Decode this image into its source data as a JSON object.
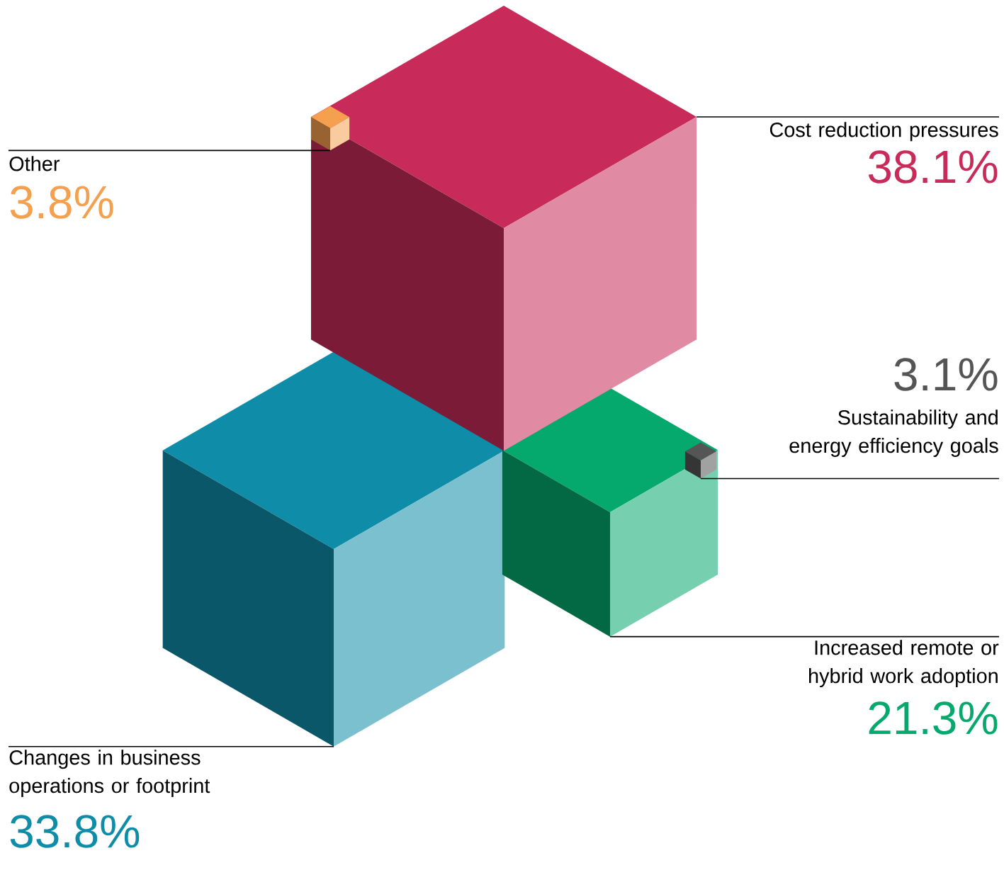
{
  "chart_data": {
    "type": "other",
    "categories": [
      "Cost reduction pressures",
      "Other",
      "Sustainability and energy efficiency goals",
      "Increased remote or hybrid work adoption",
      "Changes in business operations or footprint"
    ],
    "values": [
      38.1,
      3.8,
      3.1,
      21.3,
      33.8
    ],
    "value_labels": [
      "38.1%",
      "3.8%",
      "3.1%",
      "21.3%",
      "33.8%"
    ],
    "colors": [
      "#c82b5a",
      "#f5a04f",
      "#555555",
      "#05a86d",
      "#0e8ca8"
    ]
  }
}
